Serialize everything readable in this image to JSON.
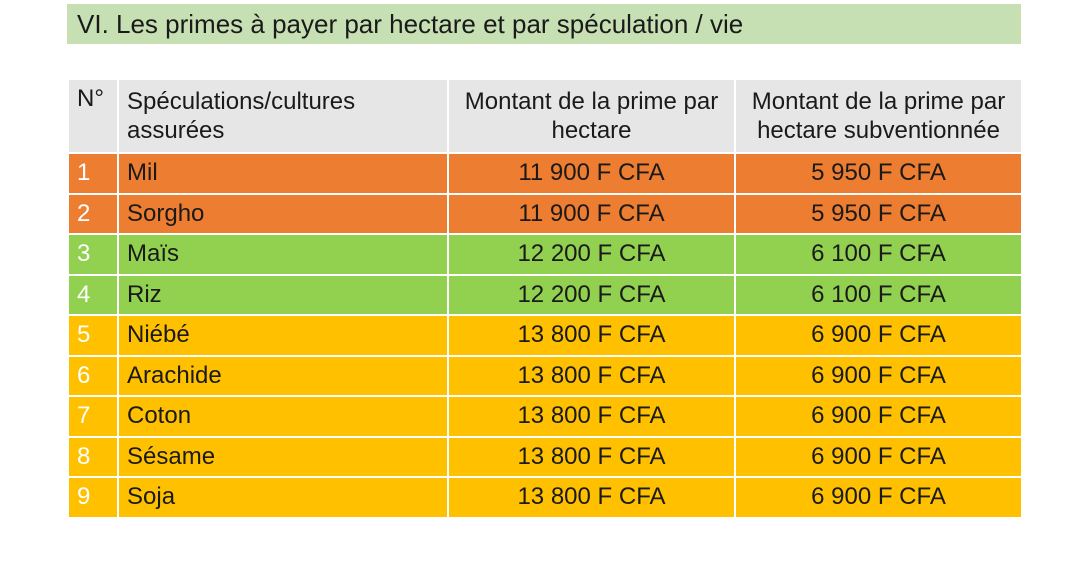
{
  "title": "VI. Les primes à payer par hectare et par spéculation / vie",
  "table": {
    "headers": {
      "no": "N°",
      "name_line1": "Spéculations/cultures",
      "name_line2": "assurées",
      "prime_line1": "Montant de la prime par",
      "prime_line2": "hectare",
      "subv_line1": "Montant de la prime par",
      "subv_line2": "hectare subventionnée"
    },
    "rows": [
      {
        "no": "1",
        "name": "Mil",
        "prime": "11 900 F CFA",
        "subv": "5 950 F CFA",
        "color": "#ed7d31"
      },
      {
        "no": "2",
        "name": "Sorgho",
        "prime": "11 900 F CFA",
        "subv": "5 950 F CFA",
        "color": "#ed7d31"
      },
      {
        "no": "3",
        "name": "Maïs",
        "prime": "12 200 F CFA",
        "subv": "6 100 F CFA",
        "color": "#92d050"
      },
      {
        "no": "4",
        "name": "Riz",
        "prime": "12 200 F CFA",
        "subv": "6 100 F CFA",
        "color": "#92d050"
      },
      {
        "no": "5",
        "name": "Niébé",
        "prime": "13 800 F CFA",
        "subv": "6 900 F CFA",
        "color": "#ffc000"
      },
      {
        "no": "6",
        "name": "Arachide",
        "prime": "13 800 F CFA",
        "subv": "6 900 F CFA",
        "color": "#ffc000"
      },
      {
        "no": "7",
        "name": "Coton",
        "prime": "13 800 F CFA",
        "subv": "6 900 F CFA",
        "color": "#ffc000"
      },
      {
        "no": "8",
        "name": "Sésame",
        "prime": "13 800 F CFA",
        "subv": "6 900 F CFA",
        "color": "#ffc000"
      },
      {
        "no": "9",
        "name": "Soja",
        "prime": "13 800 F CFA",
        "subv": "6 900 F CFA",
        "color": "#ffc000"
      }
    ]
  },
  "colors": {
    "title_background": "#c6e0b4",
    "header_background": "#e6e6e6",
    "cereals": "#ed7d31",
    "maize_rice": "#92d050",
    "legumes_oilseeds": "#ffc000"
  }
}
